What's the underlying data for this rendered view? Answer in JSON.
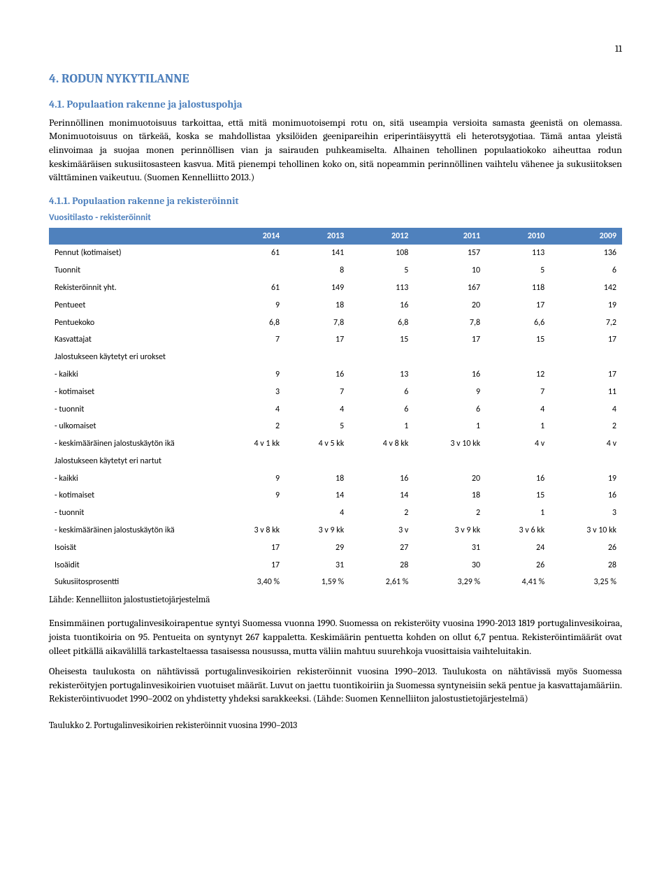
{
  "page_number": "11",
  "heading_main": "4. RODUN NYKYTILANNE",
  "subheading_41": "4.1. Populaation rakenne ja jalostuspohja",
  "para_41": "Perinnöllinen monimuotoisuus tarkoittaa, että mitä monimuotoisempi rotu on, sitä useampia versioita samasta geenistä on olemassa. Monimuotoisuus on tärkeää, koska se mahdollistaa yksilöiden geenipareihin eriperintäisyyttä eli heterotsygotiaa. Tämä antaa yleistä elinvoimaa ja suojaa monen perinnöllisen vian ja sairauden puhkeamiselta. Alhainen tehollinen populaatiokoko aiheuttaa rodun keskimääräisen sukusiitosasteen kasvua. Mitä pienempi tehollinen koko on, sitä nopeammin perinnöllinen vaihtelu vähenee ja sukusiitoksen välttäminen vaikeutuu. (Suomen Kennelliitto 2013.)",
  "subsubheading_411": "4.1.1. Populaation rakenne ja rekisteröinnit",
  "table": {
    "title": "Vuositilasto - rekisteröinnit",
    "header_bg": "#4f81bd",
    "header_fg": "#ffffff",
    "columns": [
      "",
      "2014",
      "2013",
      "2012",
      "2011",
      "2010",
      "2009"
    ],
    "rows": [
      [
        "Pennut (kotimaiset)",
        "61",
        "141",
        "108",
        "157",
        "113",
        "136"
      ],
      [
        "Tuonnit",
        "",
        "8",
        "5",
        "10",
        "5",
        "6"
      ],
      [
        "Rekisteröinnit yht.",
        "61",
        "149",
        "113",
        "167",
        "118",
        "142"
      ],
      [
        "Pentueet",
        "9",
        "18",
        "16",
        "20",
        "17",
        "19"
      ],
      [
        "Pentuekoko",
        "6,8",
        "7,8",
        "6,8",
        "7,8",
        "6,6",
        "7,2"
      ],
      [
        "Kasvattajat",
        "7",
        "17",
        "15",
        "17",
        "15",
        "17"
      ],
      [
        "Jalostukseen käytetyt eri urokset",
        "",
        "",
        "",
        "",
        "",
        ""
      ],
      [
        "- kaikki",
        "9",
        "16",
        "13",
        "16",
        "12",
        "17"
      ],
      [
        "- kotimaiset",
        "3",
        "7",
        "6",
        "9",
        "7",
        "11"
      ],
      [
        "- tuonnit",
        "4",
        "4",
        "6",
        "6",
        "4",
        "4"
      ],
      [
        "- ulkomaiset",
        "2",
        "5",
        "1",
        "1",
        "1",
        "2"
      ],
      [
        "- keskimääräinen jalostuskäytön ikä",
        "4 v 1 kk",
        "4 v 5 kk",
        "4 v 8 kk",
        "3 v 10 kk",
        "4 v",
        "4 v"
      ],
      [
        "Jalostukseen käytetyt eri nartut",
        "",
        "",
        "",
        "",
        "",
        ""
      ],
      [
        "- kaikki",
        "9",
        "18",
        "16",
        "20",
        "16",
        "19"
      ],
      [
        "- kotimaiset",
        "9",
        "14",
        "14",
        "18",
        "15",
        "16"
      ],
      [
        "- tuonnit",
        "",
        "4",
        "2",
        "2",
        "1",
        "3"
      ],
      [
        "- keskimääräinen jalostuskäytön ikä",
        "3 v 8 kk",
        "3 v 9 kk",
        "3 v",
        "3 v 9 kk",
        "3 v 6 kk",
        "3 v 10 kk"
      ],
      [
        "Isoisät",
        "17",
        "29",
        "27",
        "31",
        "24",
        "26"
      ],
      [
        "Isoäidit",
        "17",
        "31",
        "28",
        "30",
        "26",
        "28"
      ],
      [
        "Sukusiitosprosentti",
        "3,40 %",
        "1,59 %",
        "2,61 %",
        "3,29 %",
        "4,41 %",
        "3,25 %"
      ]
    ]
  },
  "source_note": "Lähde: Kennelliiton jalostustietojärjestelmä",
  "para2": "Ensimmäinen portugalinvesikoirapentue syntyi Suomessa vuonna 1990. Suomessa on rekisteröity vuosina 1990-2013 1819 portugalinvesikoiraa, joista tuontikoiria on 95. Pentueita on syntynyt 267 kappaletta. Keskimäärin pentuetta kohden on ollut 6,7 pentua. Rekisteröintimäärät ovat olleet pitkällä aikavälillä tarkasteltaessa tasaisessa nousussa, mutta väliin mahtuu suurehkoja vuosittaisia vaihteluitakin.",
  "para3": "Oheisesta taulukosta on nähtävissä portugalinvesikoirien rekisteröinnit vuosina 1990–2013. Taulukosta on nähtävissä myös Suomessa rekisteröityjen portugalinvesikoirien vuotuiset määrät. Luvut on jaettu tuontikoiriin ja Suomessa syntyneisiin sekä pentue ja kasvattajamääriin. Rekisteröintivuodet 1990–2002 on yhdistetty yhdeksi sarakkeeksi. (Lähde: Suomen Kennelliiton jalostustietojärjestelmä)",
  "caption": "Taulukko 2. Portugalinvesikoirien rekisteröinnit vuosina 1990–2013"
}
